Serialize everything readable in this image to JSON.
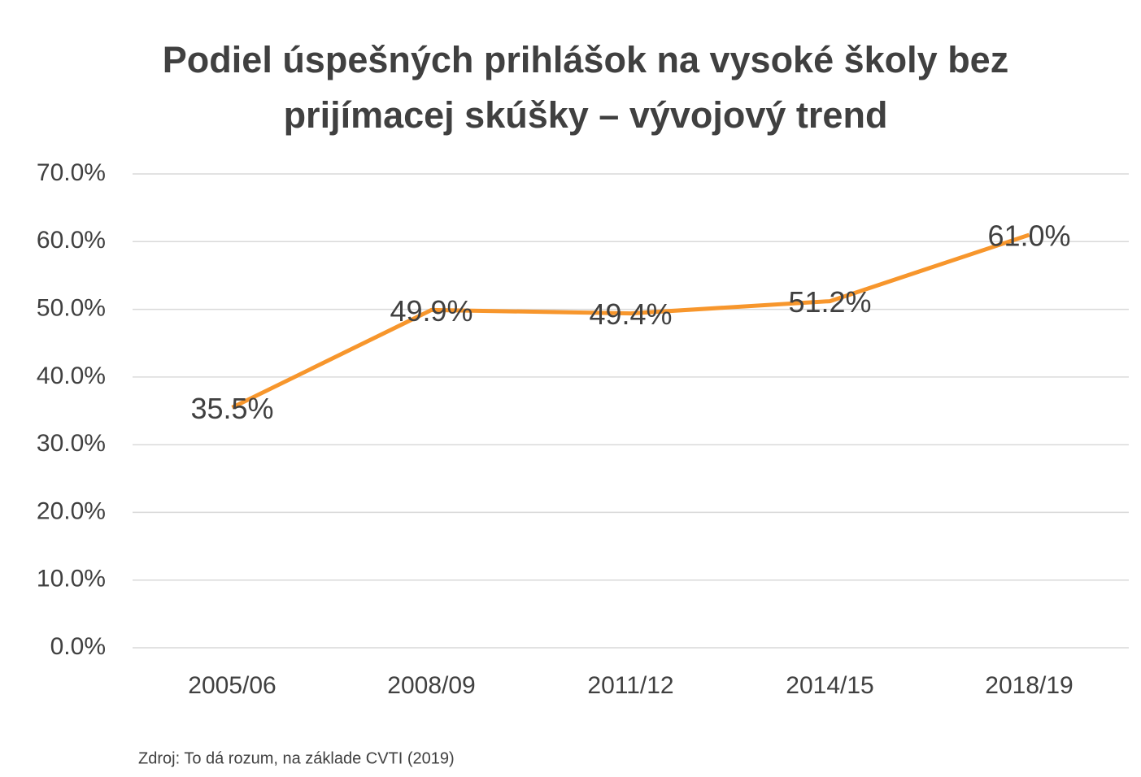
{
  "chart_data": {
    "type": "line",
    "title": "Podiel úspešných prihlášok na vysoké školy bez prijímacej skúšky – vývojový trend",
    "categories": [
      "2005/06",
      "2008/09",
      "2011/12",
      "2014/15",
      "2018/19"
    ],
    "series": [
      {
        "name": "Podiel",
        "color": "#f7962c",
        "values": [
          35.5,
          49.9,
          49.4,
          51.2,
          61.0
        ],
        "value_labels": [
          "35.5%",
          "49.9%",
          "49.4%",
          "51.2%",
          "61.0%"
        ]
      }
    ],
    "ylim": [
      0,
      70
    ],
    "yticks": [
      {
        "value": 0,
        "label": "0.0%"
      },
      {
        "value": 10,
        "label": "10.0%"
      },
      {
        "value": 20,
        "label": "20.0%"
      },
      {
        "value": 30,
        "label": "30.0%"
      },
      {
        "value": 40,
        "label": "40.0%"
      },
      {
        "value": 50,
        "label": "50.0%"
      },
      {
        "value": 60,
        "label": "60.0%"
      },
      {
        "value": 70,
        "label": "70.0%"
      }
    ],
    "grid": true,
    "note": "Zdroj: To dá rozum, na základe CVTI (2019)"
  }
}
